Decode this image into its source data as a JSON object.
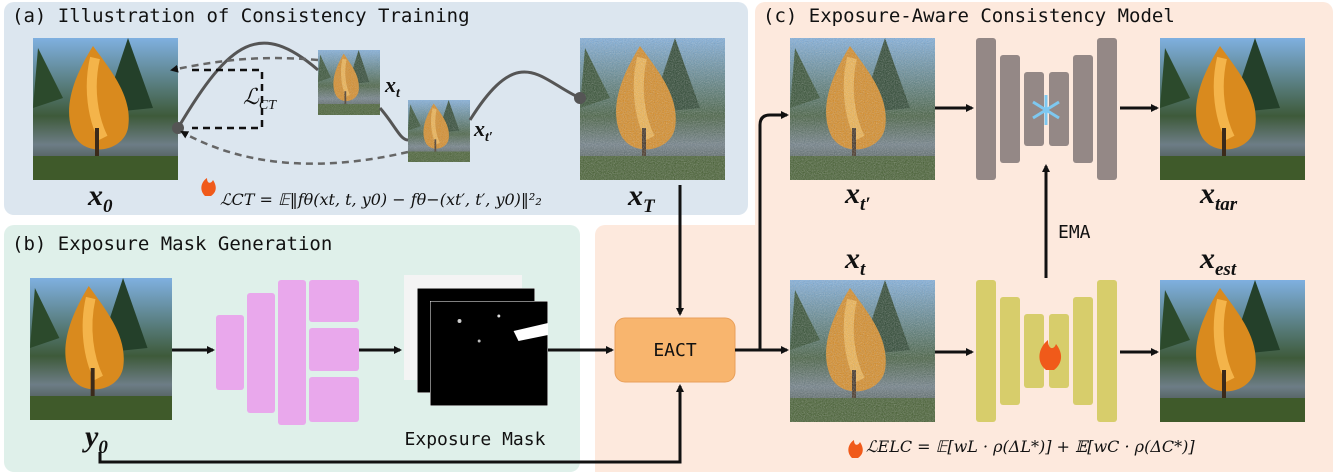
{
  "panels": {
    "a": {
      "title": "(a) Illustration of Consistency Training",
      "x0": {
        "base": "x",
        "sub": "0"
      },
      "xt": {
        "base": "x",
        "sub": "t"
      },
      "xt_prime": {
        "base": "x",
        "sub": "t′"
      },
      "xT": {
        "base": "x",
        "sub": "T"
      },
      "loss_label": {
        "base": "ℒ",
        "sub": "CT"
      },
      "formula": "ℒCT = 𝔼‖fθ(xt, t, y0) − fθ−(xt′, t′, y0)‖²₂"
    },
    "b": {
      "title": "(b) Exposure Mask Generation",
      "y0": {
        "base": "y",
        "sub": "0"
      },
      "mask_label": "Exposure Mask"
    },
    "eact": "EACT",
    "c": {
      "title": "(c) Exposure-Aware Consistency Model",
      "xt_prime": {
        "base": "x",
        "sub": "t′"
      },
      "x_tar": {
        "base": "x",
        "sub": "tar"
      },
      "ema": "EMA",
      "xt": {
        "base": "x",
        "sub": "t"
      },
      "x_est": {
        "base": "x",
        "sub": "est"
      },
      "formula": "ℒELC = 𝔼[wL · ρ(ΔL*)] + 𝔼[wC · ρ(ΔC*)]"
    }
  }
}
